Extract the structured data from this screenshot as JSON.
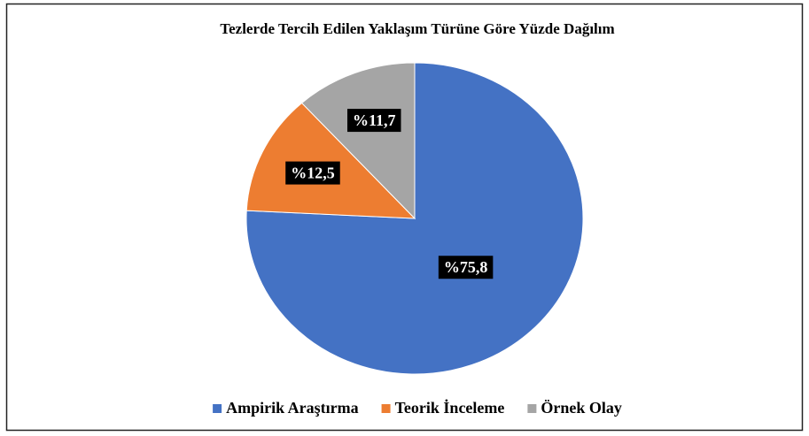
{
  "chart_data": {
    "type": "pie",
    "title": "Tezlerde Tercih Edilen Yaklaşım Türüne Göre Yüzde Dağılım",
    "categories": [
      "Ampirik Araştırma",
      "Teorik İnceleme",
      "Örnek Olay"
    ],
    "values": [
      75.8,
      12.5,
      11.7
    ],
    "value_labels": [
      "%75,8",
      "%12,5",
      "%11,7"
    ],
    "colors": [
      "#4472c4",
      "#ed7d31",
      "#a5a5a5"
    ],
    "legend": "bottom"
  }
}
